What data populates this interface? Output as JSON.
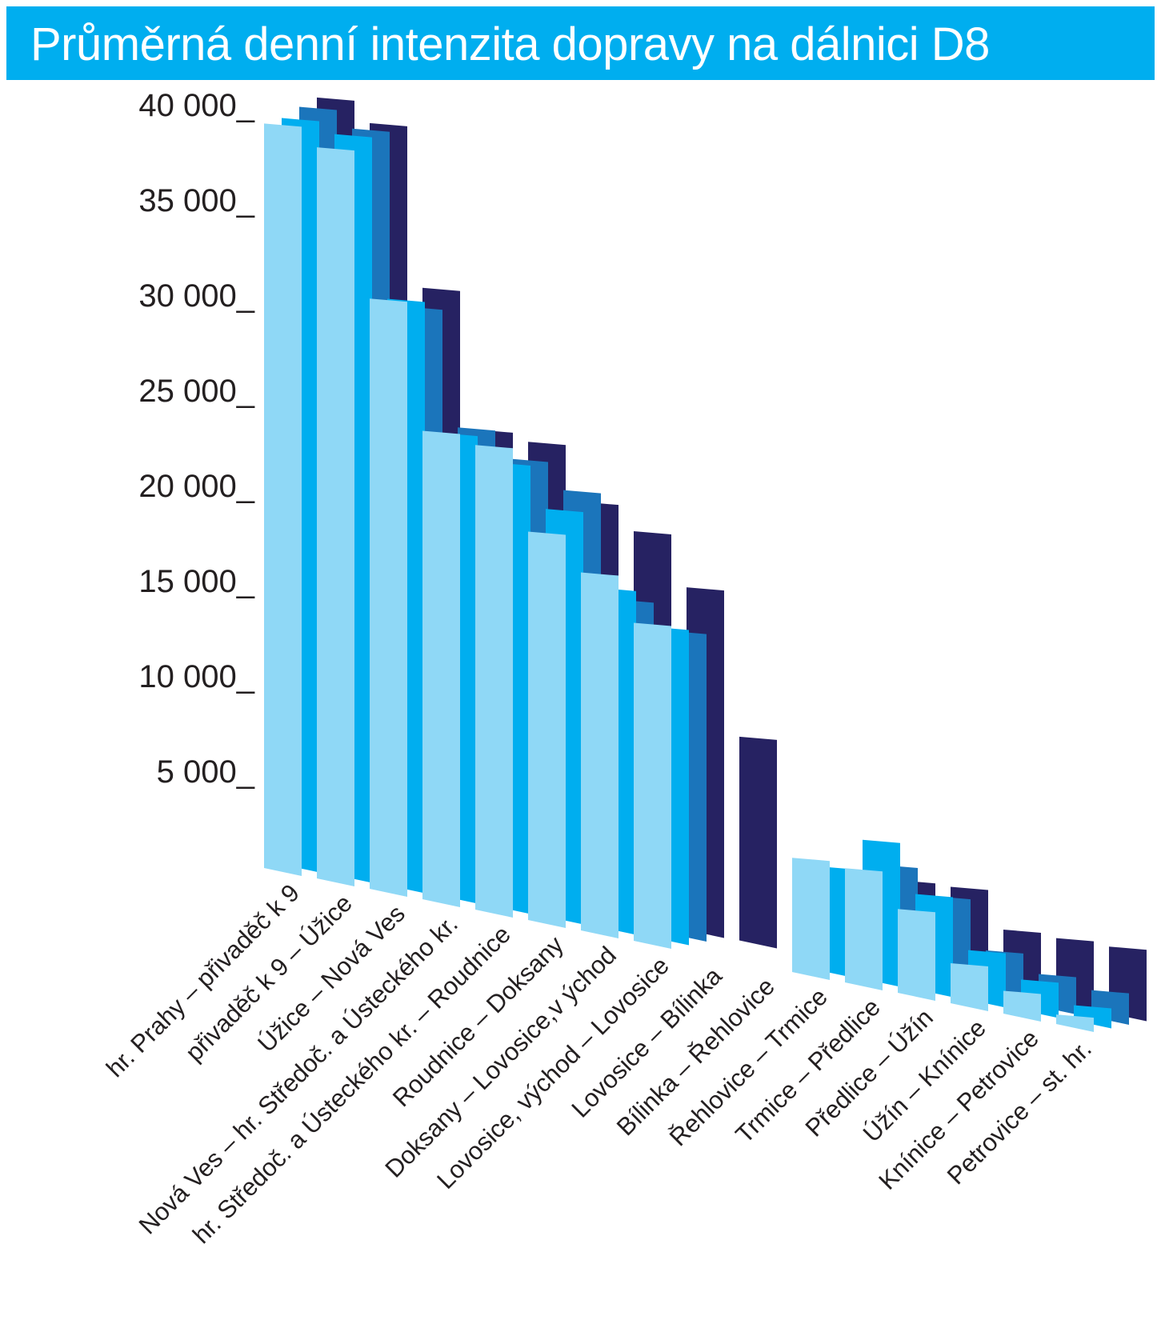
{
  "title": "Průměrná denní intenzita dopravy na dálnici D8",
  "colors": {
    "title_bg": "#00aeef",
    "title_text": "#ffffff",
    "series": [
      "#8fd8f6",
      "#00aeef",
      "#1b75bb",
      "#262262"
    ]
  },
  "chart_data": {
    "type": "bar",
    "title": "Průměrná denní intenzita dopravy na dálnici D8",
    "xlabel": "",
    "ylabel": "",
    "ylim": [
      0,
      40000
    ],
    "yticks": [
      {
        "value": 5000,
        "label": "5 000_"
      },
      {
        "value": 10000,
        "label": "10 000_"
      },
      {
        "value": 15000,
        "label": "15 000_"
      },
      {
        "value": 20000,
        "label": "20 000_"
      },
      {
        "value": 25000,
        "label": "25 000_"
      },
      {
        "value": 30000,
        "label": "30 000_"
      },
      {
        "value": 35000,
        "label": "35 000_"
      },
      {
        "value": 40000,
        "label": "40 000_"
      }
    ],
    "categories": [
      "hr. Prahy – přivaděč k 9",
      "přivaděč k 9 – Úžice",
      "Úžice – Nová Ves",
      "Nová Ves – hr. Středoč. a Ústeckého kr.",
      "hr. Středoč. a Ústeckého kr. – Roudnice",
      "Roudnice – Doksany",
      "Doksany – Lovosice,v ýchod",
      "Lovosice, východ – Lovosice",
      "Lovosice – Bílinka",
      "Bílinka – Řehlovice",
      "Řehlovice – Trmice",
      "Trmice – Předlice",
      "Předlice – Úžín",
      "Úžín – Knínice",
      "Knínice – Petrovice",
      "Petrovice – st. hr."
    ],
    "series": [
      {
        "values": [
          39100,
          38400,
          31000,
          24600,
          24400,
          20400,
          18800,
          16700,
          null,
          null,
          6000,
          6000,
          4400,
          2100,
          1200,
          500
        ]
      },
      {
        "values": [
          39200,
          38900,
          30800,
          24300,
          23300,
          21400,
          17800,
          16300,
          null,
          null,
          5400,
          7300,
          5000,
          2600,
          1600,
          800
        ]
      },
      {
        "values": [
          39600,
          39000,
          30200,
          24400,
          23300,
          22200,
          17000,
          15900,
          null,
          null,
          4800,
          5800,
          4700,
          2400,
          1700,
          1400
        ]
      },
      {
        "values": [
          39900,
          39100,
          31000,
          24100,
          24000,
          21400,
          20400,
          18000,
          10700,
          null,
          4500,
          4800,
          5000,
          3300,
          3400,
          3500
        ]
      }
    ]
  }
}
